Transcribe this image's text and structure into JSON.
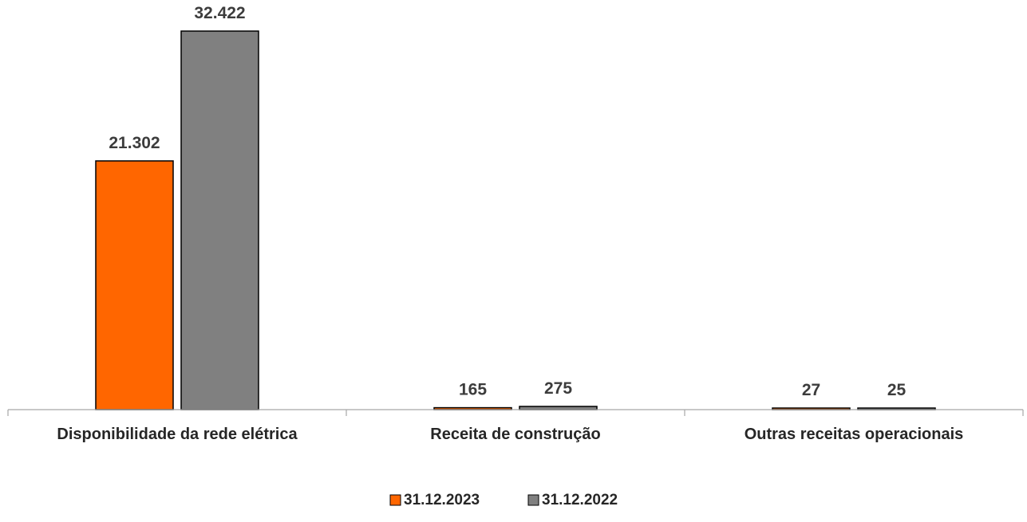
{
  "chart_data": {
    "type": "bar",
    "categories": [
      "Disponibilidade da rede elétrica",
      "Receita de construção",
      "Outras receitas operacionais"
    ],
    "series": [
      {
        "name": "31.12.2023",
        "color": "#ff6600",
        "values": [
          21302,
          165,
          27
        ],
        "labels": [
          "21.302",
          "165",
          "27"
        ]
      },
      {
        "name": "31.12.2022",
        "color": "#808080",
        "values": [
          32422,
          275,
          25
        ],
        "labels": [
          "32.422",
          "275",
          "25"
        ]
      }
    ],
    "ylim": [
      0,
      32422
    ],
    "grid": false,
    "legend_position": "bottom"
  }
}
